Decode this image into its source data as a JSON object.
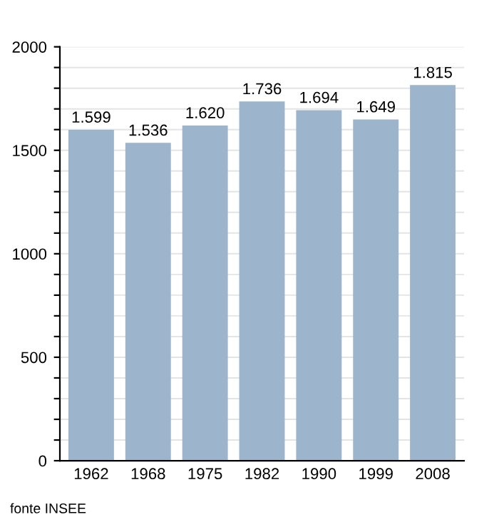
{
  "chart_data": {
    "type": "bar",
    "categories": [
      "1962",
      "1968",
      "1975",
      "1982",
      "1990",
      "1999",
      "2008"
    ],
    "values": [
      1599,
      1536,
      1620,
      1736,
      1694,
      1649,
      1815
    ],
    "value_labels": [
      "1.599",
      "1.536",
      "1.620",
      "1.736",
      "1.694",
      "1.649",
      "1.815"
    ],
    "color": "#9cb4cc",
    "ylim": [
      0,
      2000
    ],
    "yticks": [
      0,
      {
        "value": 100,
        "label": null
      },
      {
        "value": 200,
        "label": null
      },
      {
        "value": 300,
        "label": null
      },
      {
        "value": 400,
        "label": null
      },
      500,
      {
        "value": 600,
        "label": null
      },
      {
        "value": 700,
        "label": null
      },
      {
        "value": 800,
        "label": null
      },
      {
        "value": 900,
        "label": null
      },
      1000,
      {
        "value": 1100,
        "label": null
      },
      {
        "value": 1200,
        "label": null
      },
      {
        "value": 1300,
        "label": null
      },
      {
        "value": 1400,
        "label": null
      },
      1500,
      {
        "value": 1600,
        "label": null
      },
      {
        "value": 1700,
        "label": null
      },
      {
        "value": 1800,
        "label": null
      },
      {
        "value": 1900,
        "label": null
      },
      2000
    ],
    "grid": "y",
    "legend": false,
    "annotations": [
      "fonte INSEE"
    ]
  }
}
